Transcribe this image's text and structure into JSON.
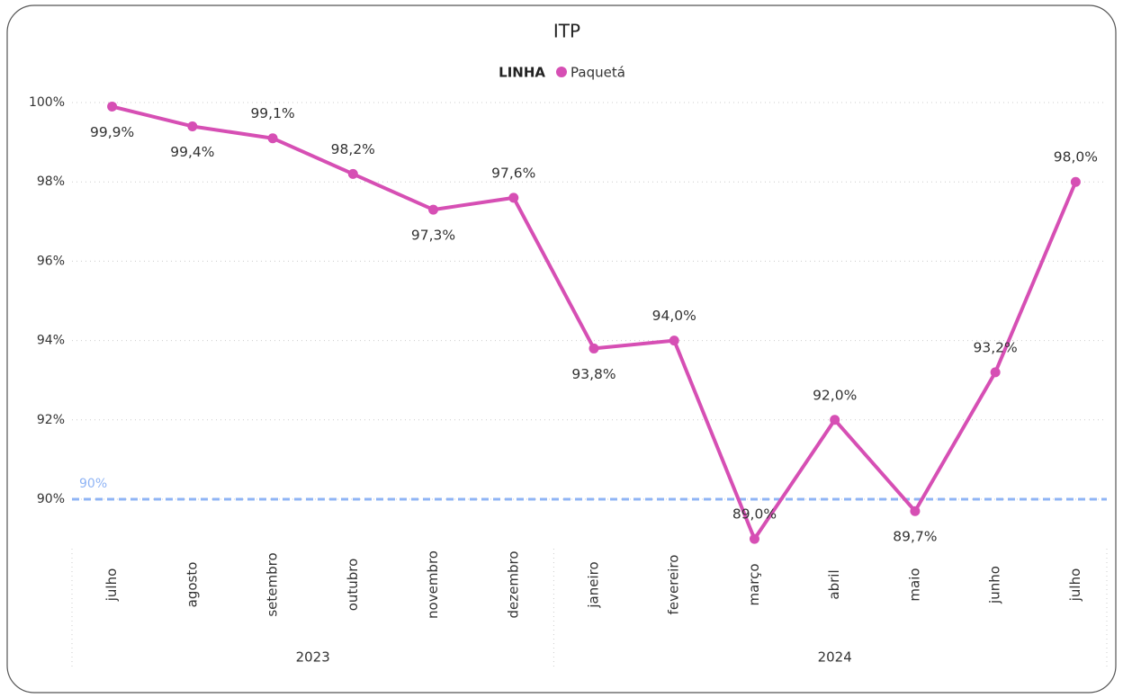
{
  "chart_data": {
    "type": "line",
    "title": "ITP",
    "legend_title": "LINHA",
    "year_groups": [
      {
        "label": "2023",
        "categories": [
          "julho",
          "agosto",
          "setembro",
          "outubro",
          "novembro",
          "dezembro"
        ]
      },
      {
        "label": "2024",
        "categories": [
          "janeiro",
          "fevereiro",
          "março",
          "abril",
          "maio",
          "junho",
          "julho"
        ]
      }
    ],
    "series": [
      {
        "name": "Paquetá",
        "color": "#d64fb4",
        "values": [
          99.9,
          99.4,
          99.1,
          98.2,
          97.3,
          97.6,
          93.8,
          94.0,
          89.0,
          92.0,
          89.7,
          93.2,
          98.0
        ],
        "value_labels": [
          "99,9%",
          "99,4%",
          "99,1%",
          "98,2%",
          "97,3%",
          "97,6%",
          "93,8%",
          "94,0%",
          "89,0%",
          "92,0%",
          "89,7%",
          "93,2%",
          "98,0%"
        ]
      }
    ],
    "ylim": [
      88.85,
      100.3
    ],
    "yticks": [
      {
        "value": 90,
        "label": "90%"
      },
      {
        "value": 92,
        "label": "92%"
      },
      {
        "value": 94,
        "label": "94%"
      },
      {
        "value": 96,
        "label": "96%"
      },
      {
        "value": 98,
        "label": "98%"
      },
      {
        "value": 100,
        "label": "100%"
      }
    ],
    "grid": true,
    "reference_line": {
      "value": 90,
      "label": "90%",
      "color": "#8fb4f5"
    }
  }
}
